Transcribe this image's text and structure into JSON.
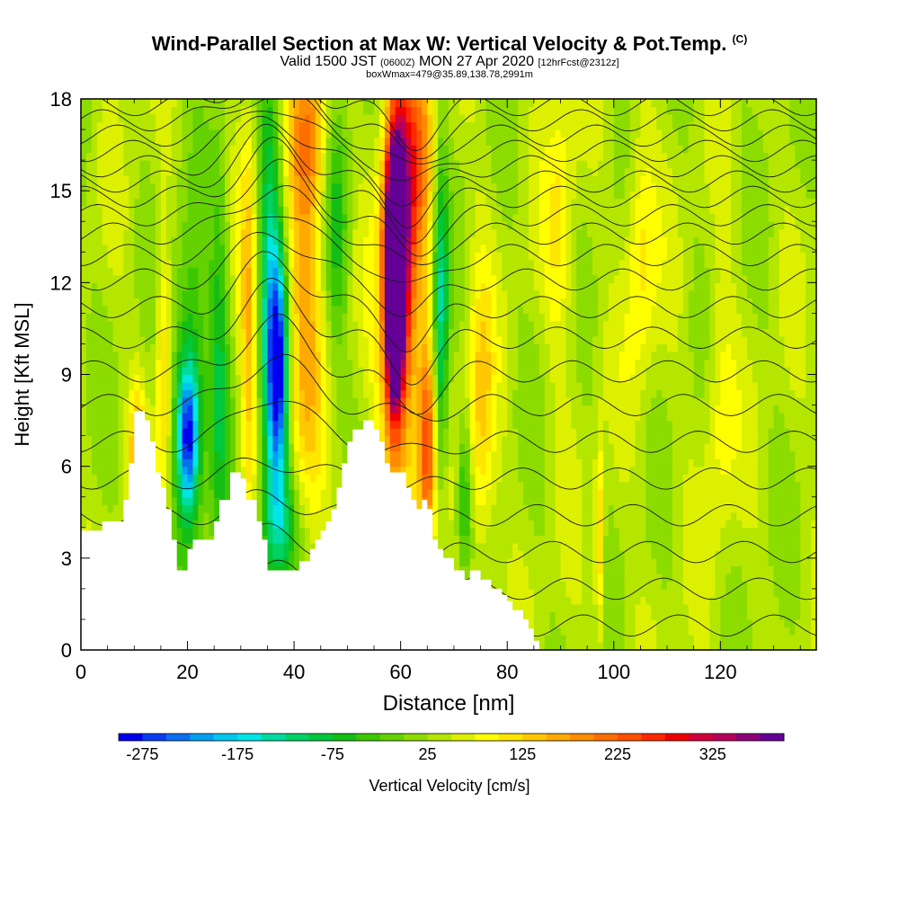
{
  "header": {
    "title": "Wind-Parallel Section at Max W: Vertical Velocity & Pot.Temp.",
    "title_tag": "(C)",
    "valid_prefix": "Valid 1500 JST",
    "valid_utc": "(0600Z)",
    "valid_date": "MON 27 Apr 2020",
    "forecast": "[12hrFcst@2312z]",
    "box_info": "boxWmax=479@35.89,138.78,2991m"
  },
  "chart_data": {
    "type": "heatmap",
    "xlabel": "Distance [nm]",
    "ylabel": "Height [Kft MSL]",
    "xlim": [
      0,
      138
    ],
    "ylim": [
      0,
      18
    ],
    "x_ticks": [
      "0",
      "20",
      "40",
      "60",
      "80",
      "100",
      "120"
    ],
    "y_ticks": [
      "0",
      "3",
      "6",
      "9",
      "12",
      "15",
      "18"
    ],
    "colorbar": {
      "label": "Vertical Velocity [cm/s]",
      "tick_labels": [
        "-275",
        "-175",
        "-75",
        "25",
        "125",
        "225",
        "325"
      ],
      "min": -300,
      "max": 400,
      "colors": [
        "#0000f0",
        "#0a3cf0",
        "#0a6ef0",
        "#00a0f0",
        "#00c8f0",
        "#00e6e6",
        "#00dca0",
        "#00d264",
        "#00c83c",
        "#14be14",
        "#3cc800",
        "#64d200",
        "#8cdc00",
        "#b4e600",
        "#dcf000",
        "#ffff00",
        "#ffe600",
        "#ffc800",
        "#ffaa00",
        "#ff8c00",
        "#ff6e00",
        "#ff5000",
        "#ff2800",
        "#f00000",
        "#d2003c",
        "#b4005a",
        "#8c0078",
        "#640096"
      ]
    },
    "terrain_profile": [
      [
        0,
        3.9
      ],
      [
        4,
        3.9
      ],
      [
        4,
        4.2
      ],
      [
        8,
        4.2
      ],
      [
        8,
        4.9
      ],
      [
        9,
        4.9
      ],
      [
        9,
        6.1
      ],
      [
        10,
        6.1
      ],
      [
        10,
        7.8
      ],
      [
        12,
        7.8
      ],
      [
        12,
        7.5
      ],
      [
        13,
        7.5
      ],
      [
        13,
        6.8
      ],
      [
        14,
        6.8
      ],
      [
        14,
        5.8
      ],
      [
        15,
        5.8
      ],
      [
        15,
        5.3
      ],
      [
        16,
        5.3
      ],
      [
        16,
        4.6
      ],
      [
        17,
        4.6
      ],
      [
        17,
        3.6
      ],
      [
        18,
        3.6
      ],
      [
        18,
        2.6
      ],
      [
        20,
        2.6
      ],
      [
        20,
        3.3
      ],
      [
        21,
        3.3
      ],
      [
        21,
        3.6
      ],
      [
        25,
        3.6
      ],
      [
        25,
        4.2
      ],
      [
        26,
        4.2
      ],
      [
        26,
        4.9
      ],
      [
        28,
        4.9
      ],
      [
        28,
        5.8
      ],
      [
        30,
        5.8
      ],
      [
        30,
        5.6
      ],
      [
        31,
        5.6
      ],
      [
        31,
        4.9
      ],
      [
        33,
        4.9
      ],
      [
        33,
        4.2
      ],
      [
        34,
        4.2
      ],
      [
        34,
        3.6
      ],
      [
        35,
        3.6
      ],
      [
        35,
        2.6
      ],
      [
        41,
        2.6
      ],
      [
        41,
        2.9
      ],
      [
        43,
        2.9
      ],
      [
        43,
        3.3
      ],
      [
        44,
        3.3
      ],
      [
        44,
        3.6
      ],
      [
        45,
        3.6
      ],
      [
        45,
        3.9
      ],
      [
        46,
        3.9
      ],
      [
        46,
        4.2
      ],
      [
        47,
        4.2
      ],
      [
        47,
        4.6
      ],
      [
        48,
        4.6
      ],
      [
        48,
        5.3
      ],
      [
        49,
        5.3
      ],
      [
        49,
        6.1
      ],
      [
        50,
        6.1
      ],
      [
        50,
        6.8
      ],
      [
        51,
        6.8
      ],
      [
        51,
        7.2
      ],
      [
        53,
        7.2
      ],
      [
        53,
        7.5
      ],
      [
        55,
        7.5
      ],
      [
        55,
        7.2
      ],
      [
        56,
        7.2
      ],
      [
        56,
        6.8
      ],
      [
        57,
        6.8
      ],
      [
        57,
        6.1
      ],
      [
        58,
        6.1
      ],
      [
        58,
        5.8
      ],
      [
        61,
        5.8
      ],
      [
        61,
        5.3
      ],
      [
        62,
        5.3
      ],
      [
        62,
        4.9
      ],
      [
        63,
        4.9
      ],
      [
        63,
        4.6
      ],
      [
        64,
        4.6
      ],
      [
        64,
        4.9
      ],
      [
        65,
        4.9
      ],
      [
        65,
        4.6
      ],
      [
        66,
        4.6
      ],
      [
        66,
        3.6
      ],
      [
        67,
        3.6
      ],
      [
        67,
        3.3
      ],
      [
        68,
        3.3
      ],
      [
        68,
        3.0
      ],
      [
        70,
        3.0
      ],
      [
        70,
        2.6
      ],
      [
        72,
        2.6
      ],
      [
        72,
        2.3
      ],
      [
        73,
        2.3
      ],
      [
        73,
        2.6
      ],
      [
        75,
        2.6
      ],
      [
        75,
        2.3
      ],
      [
        77,
        2.3
      ],
      [
        77,
        2.0
      ],
      [
        79,
        2.0
      ],
      [
        79,
        1.8
      ],
      [
        80,
        1.8
      ],
      [
        80,
        1.6
      ],
      [
        81,
        1.6
      ],
      [
        81,
        1.3
      ],
      [
        83,
        1.3
      ],
      [
        83,
        1.0
      ],
      [
        84,
        1.0
      ],
      [
        84,
        0.7
      ],
      [
        85,
        0.7
      ],
      [
        85,
        0.3
      ],
      [
        86,
        0.3
      ],
      [
        86,
        0
      ],
      [
        138,
        0
      ]
    ],
    "velocity_features": [
      {
        "x": 58.8,
        "y": 11.8,
        "value": 479,
        "sx": 1.0,
        "sy": 2.4
      },
      {
        "x": 59.3,
        "y": 13.5,
        "value": 300,
        "sx": 1.6,
        "sy": 3.2
      },
      {
        "x": 60.0,
        "y": 11.0,
        "value": 180,
        "sx": 2.8,
        "sy": 5.0
      },
      {
        "x": 65.0,
        "y": 6.5,
        "value": 180,
        "sx": 1.2,
        "sy": 2.5
      },
      {
        "x": 63.5,
        "y": 16.5,
        "value": 120,
        "sx": 2.5,
        "sy": 2.5
      },
      {
        "x": 67.5,
        "y": 11.0,
        "value": -170,
        "sx": 1.0,
        "sy": 4.0
      },
      {
        "x": 37.0,
        "y": 9.0,
        "value": -280,
        "sx": 1.3,
        "sy": 2.4
      },
      {
        "x": 35.5,
        "y": 12.0,
        "value": -150,
        "sx": 1.6,
        "sy": 6.0
      },
      {
        "x": 37.5,
        "y": 4.0,
        "value": -150,
        "sx": 2.5,
        "sy": 1.5
      },
      {
        "x": 20.0,
        "y": 7.0,
        "value": -230,
        "sx": 1.3,
        "sy": 1.5
      },
      {
        "x": 20.5,
        "y": 8.5,
        "value": -140,
        "sx": 2.2,
        "sy": 3.5
      },
      {
        "x": 42.0,
        "y": 11.0,
        "value": 120,
        "sx": 2.4,
        "sy": 5.0
      },
      {
        "x": 43.0,
        "y": 17.0,
        "value": 120,
        "sx": 2.5,
        "sy": 2.0
      },
      {
        "x": 31.5,
        "y": 10.0,
        "value": 110,
        "sx": 1.2,
        "sy": 5.0
      },
      {
        "x": 15.5,
        "y": 9.0,
        "value": 100,
        "sx": 1.0,
        "sy": 3.5
      },
      {
        "x": 10.5,
        "y": 6.5,
        "value": 120,
        "sx": 1.0,
        "sy": 1.5
      },
      {
        "x": 26.0,
        "y": 9.0,
        "value": -100,
        "sx": 1.3,
        "sy": 5.0
      },
      {
        "x": 48.0,
        "y": 14.0,
        "value": -90,
        "sx": 1.6,
        "sy": 3.0
      },
      {
        "x": 75.0,
        "y": 7.5,
        "value": 100,
        "sx": 1.8,
        "sy": 3.5
      },
      {
        "x": 72.0,
        "y": 5.0,
        "value": -100,
        "sx": 1.0,
        "sy": 1.8
      },
      {
        "x": 97.3,
        "y": 3.5,
        "value": 110,
        "sx": 0.6,
        "sy": 2.2
      },
      {
        "x": 105.0,
        "y": 13.0,
        "value": 80,
        "sx": 2.0,
        "sy": 3.0
      },
      {
        "x": 90.0,
        "y": 14.0,
        "value": 70,
        "sx": 2.0,
        "sy": 3.0
      },
      {
        "x": 120.0,
        "y": 8.0,
        "value": 60,
        "sx": 2.0,
        "sy": 3.0
      }
    ],
    "theta_contour_heights": [
      0.8,
      2.0,
      3.2,
      4.4,
      5.6,
      6.8,
      8.0,
      9.1,
      10.2,
      11.2,
      12.1,
      12.9,
      13.6,
      14.2,
      14.8,
      15.3,
      15.8,
      16.3,
      16.8,
      17.3,
      17.8
    ]
  }
}
